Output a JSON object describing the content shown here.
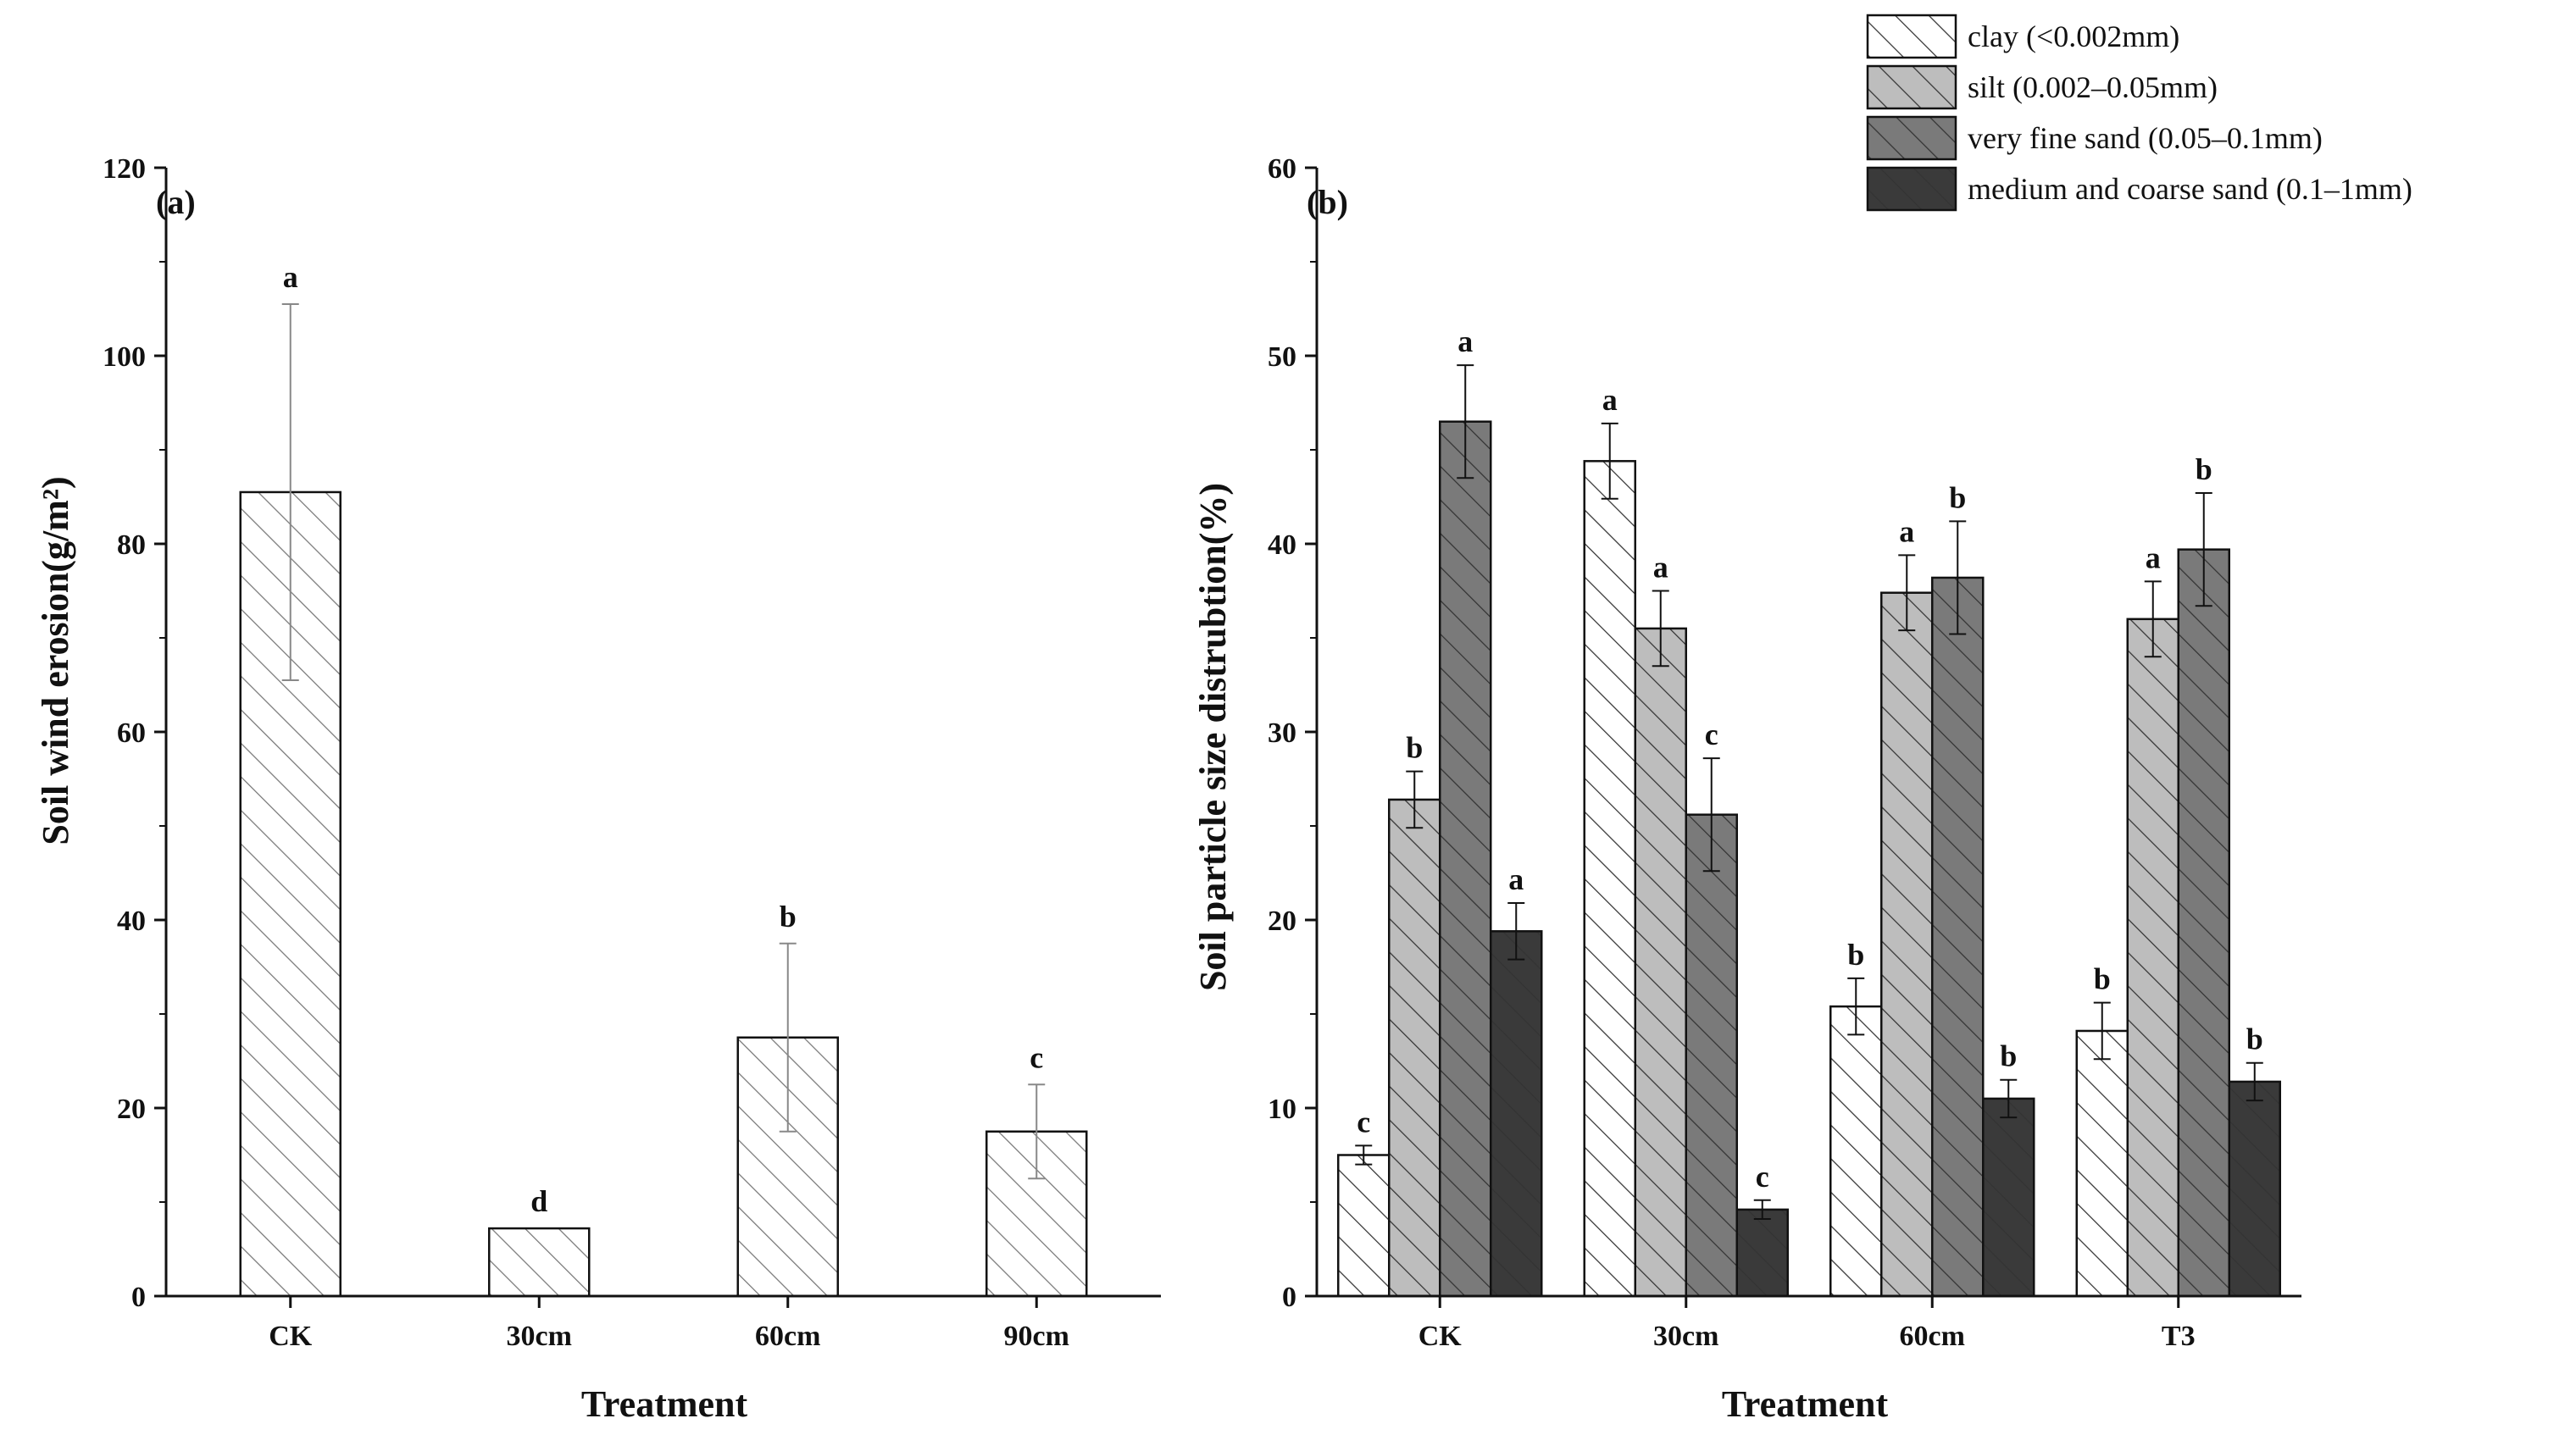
{
  "colors": {
    "axis": "#111111",
    "hatch": "#333333",
    "hatch_light": "#777777",
    "error_bar_light": "#888888",
    "clay_fill": "#ffffff",
    "silt_fill": "#bdbdbd",
    "very_fine_fill": "#7a7a7a",
    "coarse_fill": "#3a3a3a"
  },
  "chart_data": [
    {
      "type": "bar",
      "panel_label": "(a)",
      "title": "",
      "xlabel": "Treatment",
      "ylabel": "Soil wind erosion(g/m²)",
      "ylim": [
        0,
        120
      ],
      "yticks": [
        "0",
        "20",
        "40",
        "60",
        "80",
        "100",
        "120"
      ],
      "categories": [
        "CK",
        "30cm",
        "60cm",
        "90cm"
      ],
      "values": [
        85.5,
        7.2,
        27.5,
        17.5
      ],
      "errors": [
        20.0,
        0.0,
        10.0,
        5.0
      ],
      "significance": [
        "a",
        "d",
        "b",
        "c"
      ]
    },
    {
      "type": "bar",
      "panel_label": "(b)",
      "title": "",
      "xlabel": "Treatment",
      "ylabel": "Soil particle size distrubtion(%)",
      "ylim": [
        0,
        60
      ],
      "yticks": [
        "0",
        "10",
        "20",
        "30",
        "40",
        "50",
        "60"
      ],
      "categories": [
        "CK",
        "30cm",
        "60cm",
        "T3"
      ],
      "legend_position": "top-right",
      "series": [
        {
          "name": "clay (<0.002mm)",
          "values": [
            7.5,
            44.4,
            15.4,
            14.1
          ],
          "errors": [
            0.5,
            2.0,
            1.5,
            1.5
          ],
          "significance": [
            "c",
            "a",
            "b",
            "b"
          ]
        },
        {
          "name": "silt (0.002–0.05mm)",
          "values": [
            26.4,
            35.5,
            37.4,
            36.0
          ],
          "errors": [
            1.5,
            2.0,
            2.0,
            2.0
          ],
          "significance": [
            "b",
            "a",
            "a",
            "a"
          ]
        },
        {
          "name": "very fine sand (0.05–0.1mm)",
          "values": [
            46.5,
            25.6,
            38.2,
            39.7
          ],
          "errors": [
            3.0,
            3.0,
            3.0,
            3.0
          ],
          "significance": [
            "a",
            "c",
            "b",
            "b"
          ]
        },
        {
          "name": "medium and coarse sand (0.1–1mm)",
          "values": [
            19.4,
            4.6,
            10.5,
            11.4
          ],
          "errors": [
            1.5,
            0.5,
            1.0,
            1.0
          ],
          "significance": [
            "a",
            "c",
            "b",
            "b"
          ]
        }
      ]
    }
  ]
}
